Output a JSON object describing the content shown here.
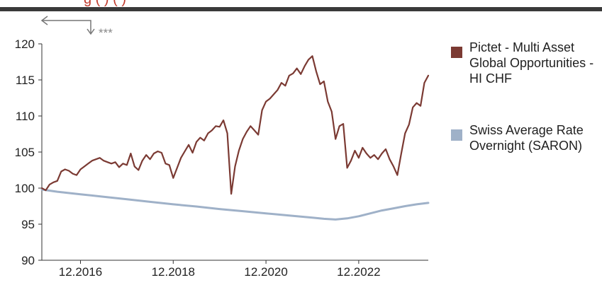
{
  "header": {
    "text": "g                (    )  (                )"
  },
  "annotation": {
    "note": "***"
  },
  "colors": {
    "primary": "#7b3a33",
    "benchmark": "#9fb1c8",
    "axis": "#333333",
    "header_rule": "#3a3a3a"
  },
  "chart_data": {
    "type": "line",
    "title": "",
    "xlabel": "",
    "ylabel": "",
    "x_range": [
      "2016-02",
      "2024-06"
    ],
    "ylim": [
      90,
      120
    ],
    "y_ticks": [
      90,
      95,
      100,
      105,
      110,
      115,
      120
    ],
    "x_ticks": [
      {
        "date": "2016-12",
        "label": "12.2016"
      },
      {
        "date": "2018-12",
        "label": "12.2018"
      },
      {
        "date": "2020-12",
        "label": "12.2020"
      },
      {
        "date": "2022-12",
        "label": "12.2022"
      }
    ],
    "grid": false,
    "legend_position": "right",
    "series": [
      {
        "name": "Pictet - Multi Asset Global Opportunities - HI CHF",
        "color": "#7b3a33",
        "points": [
          [
            "2016-02",
            100.0
          ],
          [
            "2016-03",
            99.7
          ],
          [
            "2016-04",
            100.5
          ],
          [
            "2016-05",
            100.8
          ],
          [
            "2016-06",
            101.0
          ],
          [
            "2016-07",
            102.3
          ],
          [
            "2016-08",
            102.6
          ],
          [
            "2016-09",
            102.4
          ],
          [
            "2016-10",
            102.0
          ],
          [
            "2016-11",
            101.8
          ],
          [
            "2016-12",
            102.6
          ],
          [
            "2017-01",
            103.0
          ],
          [
            "2017-02",
            103.4
          ],
          [
            "2017-03",
            103.8
          ],
          [
            "2017-04",
            104.0
          ],
          [
            "2017-05",
            104.2
          ],
          [
            "2017-06",
            103.8
          ],
          [
            "2017-07",
            103.6
          ],
          [
            "2017-08",
            103.4
          ],
          [
            "2017-09",
            103.6
          ],
          [
            "2017-10",
            102.9
          ],
          [
            "2017-11",
            103.4
          ],
          [
            "2017-12",
            103.2
          ],
          [
            "2018-01",
            104.8
          ],
          [
            "2018-02",
            103.0
          ],
          [
            "2018-03",
            102.5
          ],
          [
            "2018-04",
            103.8
          ],
          [
            "2018-05",
            104.6
          ],
          [
            "2018-06",
            104.0
          ],
          [
            "2018-07",
            104.8
          ],
          [
            "2018-08",
            105.1
          ],
          [
            "2018-09",
            104.9
          ],
          [
            "2018-10",
            103.4
          ],
          [
            "2018-11",
            103.2
          ],
          [
            "2018-12",
            101.4
          ],
          [
            "2019-01",
            102.8
          ],
          [
            "2019-02",
            104.2
          ],
          [
            "2019-03",
            105.1
          ],
          [
            "2019-04",
            106.0
          ],
          [
            "2019-05",
            104.9
          ],
          [
            "2019-06",
            106.4
          ],
          [
            "2019-07",
            107.0
          ],
          [
            "2019-08",
            106.6
          ],
          [
            "2019-09",
            107.6
          ],
          [
            "2019-10",
            108.0
          ],
          [
            "2019-11",
            108.6
          ],
          [
            "2019-12",
            108.5
          ],
          [
            "2020-01",
            109.4
          ],
          [
            "2020-02",
            107.6
          ],
          [
            "2020-03",
            99.2
          ],
          [
            "2020-04",
            103.0
          ],
          [
            "2020-05",
            105.2
          ],
          [
            "2020-06",
            106.8
          ],
          [
            "2020-07",
            107.8
          ],
          [
            "2020-08",
            108.6
          ],
          [
            "2020-09",
            108.0
          ],
          [
            "2020-10",
            107.4
          ],
          [
            "2020-11",
            110.8
          ],
          [
            "2020-12",
            112.0
          ],
          [
            "2021-01",
            112.4
          ],
          [
            "2021-02",
            113.0
          ],
          [
            "2021-03",
            113.6
          ],
          [
            "2021-04",
            114.6
          ],
          [
            "2021-05",
            114.2
          ],
          [
            "2021-06",
            115.6
          ],
          [
            "2021-07",
            115.9
          ],
          [
            "2021-08",
            116.6
          ],
          [
            "2021-09",
            115.8
          ],
          [
            "2021-10",
            116.9
          ],
          [
            "2021-11",
            117.8
          ],
          [
            "2021-12",
            118.3
          ],
          [
            "2022-01",
            116.2
          ],
          [
            "2022-02",
            114.4
          ],
          [
            "2022-03",
            114.8
          ],
          [
            "2022-04",
            112.0
          ],
          [
            "2022-05",
            110.6
          ],
          [
            "2022-06",
            106.8
          ],
          [
            "2022-07",
            108.6
          ],
          [
            "2022-08",
            108.9
          ],
          [
            "2022-09",
            102.8
          ],
          [
            "2022-10",
            103.8
          ],
          [
            "2022-11",
            105.2
          ],
          [
            "2022-12",
            104.2
          ],
          [
            "2023-01",
            105.6
          ],
          [
            "2023-02",
            104.8
          ],
          [
            "2023-03",
            104.2
          ],
          [
            "2023-04",
            104.6
          ],
          [
            "2023-05",
            104.0
          ],
          [
            "2023-06",
            104.8
          ],
          [
            "2023-07",
            105.4
          ],
          [
            "2023-08",
            104.0
          ],
          [
            "2023-09",
            103.0
          ],
          [
            "2023-10",
            101.8
          ],
          [
            "2023-11",
            104.8
          ],
          [
            "2023-12",
            107.6
          ],
          [
            "2024-01",
            108.8
          ],
          [
            "2024-02",
            111.2
          ],
          [
            "2024-03",
            111.8
          ],
          [
            "2024-04",
            111.4
          ],
          [
            "2024-05",
            114.6
          ],
          [
            "2024-06",
            115.6
          ]
        ]
      },
      {
        "name": "Swiss Average Rate Overnight (SARON)",
        "color": "#9fb1c8",
        "points": [
          [
            "2016-02",
            99.8
          ],
          [
            "2016-06",
            99.5
          ],
          [
            "2016-12",
            99.15
          ],
          [
            "2017-06",
            98.8
          ],
          [
            "2017-12",
            98.45
          ],
          [
            "2018-06",
            98.1
          ],
          [
            "2018-12",
            97.75
          ],
          [
            "2019-06",
            97.45
          ],
          [
            "2019-12",
            97.1
          ],
          [
            "2020-06",
            96.8
          ],
          [
            "2020-12",
            96.5
          ],
          [
            "2021-06",
            96.2
          ],
          [
            "2021-12",
            95.9
          ],
          [
            "2022-03",
            95.75
          ],
          [
            "2022-06",
            95.65
          ],
          [
            "2022-09",
            95.8
          ],
          [
            "2022-12",
            96.1
          ],
          [
            "2023-03",
            96.5
          ],
          [
            "2023-06",
            96.9
          ],
          [
            "2023-09",
            97.2
          ],
          [
            "2023-12",
            97.5
          ],
          [
            "2024-03",
            97.75
          ],
          [
            "2024-06",
            97.95
          ]
        ]
      }
    ]
  }
}
